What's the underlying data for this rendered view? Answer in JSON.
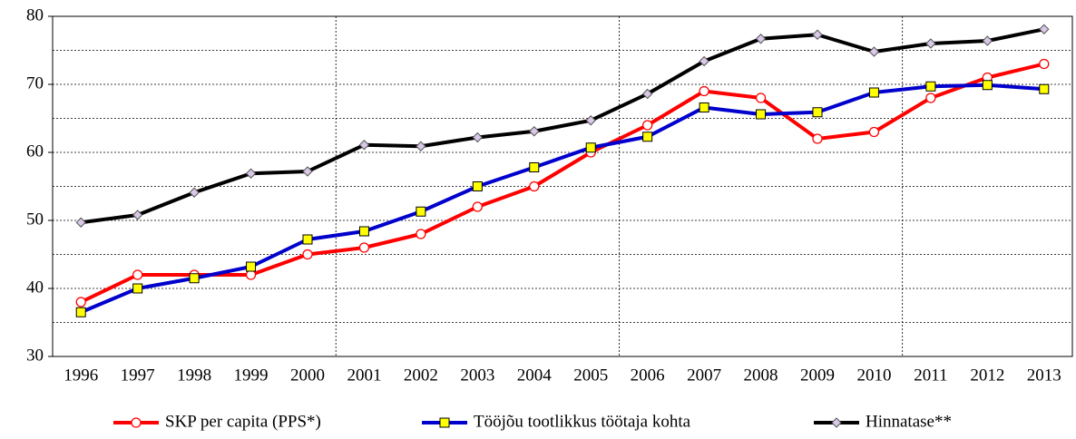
{
  "chart_data": {
    "type": "line",
    "categories": [
      "1996",
      "1997",
      "1998",
      "1999",
      "2000",
      "2001",
      "2002",
      "2003",
      "2004",
      "2005",
      "2006",
      "2007",
      "2008",
      "2009",
      "2010",
      "2011",
      "2012",
      "2013"
    ],
    "series": [
      {
        "name": "SKP per capita (PPS*)",
        "color": "#ff0000",
        "marker": "circle",
        "marker_fill": "#ffffff",
        "values": [
          38,
          42,
          42,
          42,
          45,
          46,
          48,
          52,
          55,
          60,
          64,
          69,
          68,
          62,
          63,
          68,
          71,
          73
        ]
      },
      {
        "name": "Tööjõu tootlikkus töötaja kohta",
        "color": "#0000cc",
        "marker": "square",
        "marker_fill": "#ffff00",
        "values": [
          36.5,
          40,
          41.5,
          43.2,
          47.2,
          48.4,
          51.3,
          55,
          57.8,
          60.7,
          62.3,
          66.6,
          65.6,
          65.9,
          68.8,
          69.7,
          69.9,
          69.3
        ]
      },
      {
        "name": "Hinnatase**",
        "color": "#000000",
        "marker": "diamond",
        "marker_fill": "#d9c8e8",
        "values": [
          49.7,
          50.8,
          54.1,
          56.9,
          57.2,
          61.1,
          60.9,
          62.2,
          63.1,
          64.7,
          68.6,
          73.4,
          76.7,
          77.3,
          74.8,
          76,
          76.4,
          78.1
        ]
      }
    ],
    "ylim": [
      30,
      80
    ],
    "yticks": [
      30,
      40,
      50,
      60,
      70,
      80
    ],
    "minor_yticks": [
      35,
      45,
      55,
      65,
      75
    ],
    "grid": true,
    "xgrid_every": 5,
    "legend": "bottom"
  }
}
